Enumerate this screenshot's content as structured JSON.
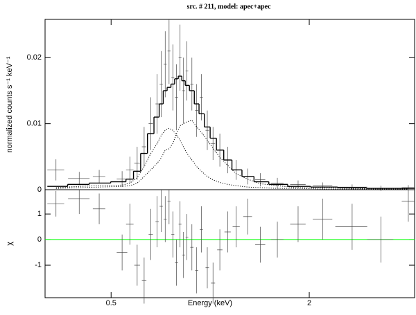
{
  "chart_data": [
    {
      "type": "errorbar",
      "title": "src. # 211, model: apec+apec",
      "ylabel": "normalized counts s⁻¹ keV⁻¹",
      "xscale": "log",
      "xlim": [
        0.315,
        4.18
      ],
      "ylim": [
        0,
        0.0258
      ],
      "yticks": [
        0,
        0.01,
        0.02
      ],
      "x": [
        0.34,
        0.4,
        0.46,
        0.54,
        0.57,
        0.6,
        0.63,
        0.66,
        0.69,
        0.71,
        0.73,
        0.75,
        0.77,
        0.79,
        0.81,
        0.83,
        0.85,
        0.88,
        0.91,
        0.94,
        0.98,
        1.02,
        1.07,
        1.13,
        1.2,
        1.3,
        1.42,
        1.6,
        1.85,
        2.2,
        2.7,
        3.3,
        4.0
      ],
      "xerr": [
        0.02,
        0.03,
        0.02,
        0.02,
        0.015,
        0.012,
        0.01,
        0.01,
        0.008,
        0.008,
        0.008,
        0.008,
        0.008,
        0.008,
        0.008,
        0.008,
        0.008,
        0.01,
        0.01,
        0.01,
        0.012,
        0.015,
        0.02,
        0.025,
        0.03,
        0.04,
        0.05,
        0.07,
        0.1,
        0.15,
        0.3,
        0.3,
        0.18
      ],
      "series": [
        {
          "color": "#444444",
          "values": [
            0.003,
            0.0017,
            0.002,
            0.0016,
            0.003,
            0.004,
            0.0065,
            0.01,
            0.013,
            0.016,
            0.019,
            0.021,
            0.017,
            0.014,
            0.02,
            0.015,
            0.018,
            0.016,
            0.012,
            0.014,
            0.009,
            0.007,
            0.006,
            0.0045,
            0.003,
            0.002,
            0.0015,
            0.001,
            0.0008,
            0.0006,
            0.0004,
            0.0002,
            0.0003
          ],
          "errors": [
            0.0016,
            0.001,
            0.001,
            0.0012,
            0.002,
            0.0025,
            0.003,
            0.004,
            0.0045,
            0.005,
            0.005,
            0.005,
            0.005,
            0.005,
            0.005,
            0.005,
            0.0045,
            0.004,
            0.004,
            0.0035,
            0.003,
            0.0025,
            0.0025,
            0.002,
            0.0015,
            0.0012,
            0.001,
            0.0008,
            0.0006,
            0.0005,
            0.0004,
            0.0004,
            0.0004
          ]
        },
        {
          "color": "#000000",
          "step": true,
          "values": [
            0.0005,
            0.0008,
            0.001,
            0.0012,
            0.0016,
            0.0028,
            0.0055,
            0.0085,
            0.011,
            0.013,
            0.015,
            0.0155,
            0.016,
            0.0168,
            0.0172,
            0.0165,
            0.0158,
            0.015,
            0.013,
            0.0115,
            0.0095,
            0.0078,
            0.006,
            0.0045,
            0.003,
            0.002,
            0.0012,
            0.0008,
            0.0005,
            0.0004,
            0.0003,
            0.0002,
            0.0002
          ]
        },
        {
          "color": "#000000",
          "dash": "dotted",
          "values": [
            0.0003,
            0.0005,
            0.0006,
            0.0007,
            0.001,
            0.0018,
            0.0035,
            0.0055,
            0.007,
            0.0082,
            0.009,
            0.0093,
            0.009,
            0.0083,
            0.0075,
            0.0065,
            0.0055,
            0.0045,
            0.0035,
            0.0028,
            0.002,
            0.0015,
            0.0011,
            0.0008,
            0.0006,
            0.0004,
            0.0003,
            0.0002,
            0.0002,
            0.0001,
            0.0001,
            0.0001,
            0.0001
          ]
        },
        {
          "color": "#000000",
          "dash": "dotted",
          "values": [
            0.0002,
            0.0003,
            0.0004,
            0.0005,
            0.0006,
            0.001,
            0.002,
            0.003,
            0.004,
            0.0048,
            0.006,
            0.0062,
            0.007,
            0.0085,
            0.0097,
            0.01,
            0.0103,
            0.0105,
            0.0095,
            0.0087,
            0.0075,
            0.0063,
            0.0049,
            0.0037,
            0.0024,
            0.0016,
            0.0009,
            0.0006,
            0.0003,
            0.0003,
            0.0002,
            0.0001,
            0.0001
          ]
        }
      ]
    },
    {
      "type": "errorbar",
      "xlabel": "Energy (keV)",
      "ylabel": "χ",
      "xscale": "log",
      "xlim": [
        0.315,
        4.18
      ],
      "xticks": [
        0.5,
        2
      ],
      "ylim": [
        -2.27,
        1.95
      ],
      "yticks": [
        -1,
        0,
        1
      ],
      "reference_line": {
        "value": 0,
        "color": "#00ff00"
      },
      "x": [
        0.34,
        0.4,
        0.46,
        0.54,
        0.57,
        0.6,
        0.63,
        0.66,
        0.69,
        0.71,
        0.73,
        0.75,
        0.77,
        0.79,
        0.81,
        0.83,
        0.85,
        0.88,
        0.91,
        0.94,
        0.98,
        1.02,
        1.07,
        1.13,
        1.2,
        1.3,
        1.42,
        1.6,
        1.85,
        2.2,
        2.7,
        3.3,
        4.0
      ],
      "xerr": [
        0.02,
        0.03,
        0.02,
        0.02,
        0.015,
        0.012,
        0.01,
        0.01,
        0.008,
        0.008,
        0.008,
        0.008,
        0.008,
        0.008,
        0.008,
        0.008,
        0.008,
        0.01,
        0.01,
        0.01,
        0.012,
        0.015,
        0.02,
        0.025,
        0.03,
        0.04,
        0.05,
        0.07,
        0.1,
        0.15,
        0.3,
        0.3,
        0.18
      ],
      "series": [
        {
          "color": "#444444",
          "values": [
            1.4,
            1.6,
            1.2,
            -0.5,
            0.6,
            -1.0,
            -1.6,
            0.2,
            0.7,
            1.3,
            0.8,
            1.5,
            0.2,
            -0.9,
            0.6,
            -0.6,
            0.1,
            -0.3,
            -1.2,
            0.4,
            -1.1,
            -1.7,
            -0.4,
            0.3,
            0.5,
            0.9,
            -0.2,
            0.0,
            0.6,
            0.8,
            0.5,
            0.0,
            1.5
          ],
          "errors": [
            0.5,
            0.6,
            0.6,
            0.7,
            0.8,
            0.8,
            0.9,
            1.0,
            1.0,
            1.0,
            0.9,
            0.9,
            0.9,
            0.9,
            0.9,
            0.9,
            0.9,
            0.9,
            0.9,
            0.9,
            0.8,
            0.8,
            0.8,
            0.8,
            0.8,
            0.7,
            0.7,
            0.7,
            0.7,
            0.8,
            0.9,
            0.9,
            0.8
          ]
        }
      ]
    }
  ]
}
